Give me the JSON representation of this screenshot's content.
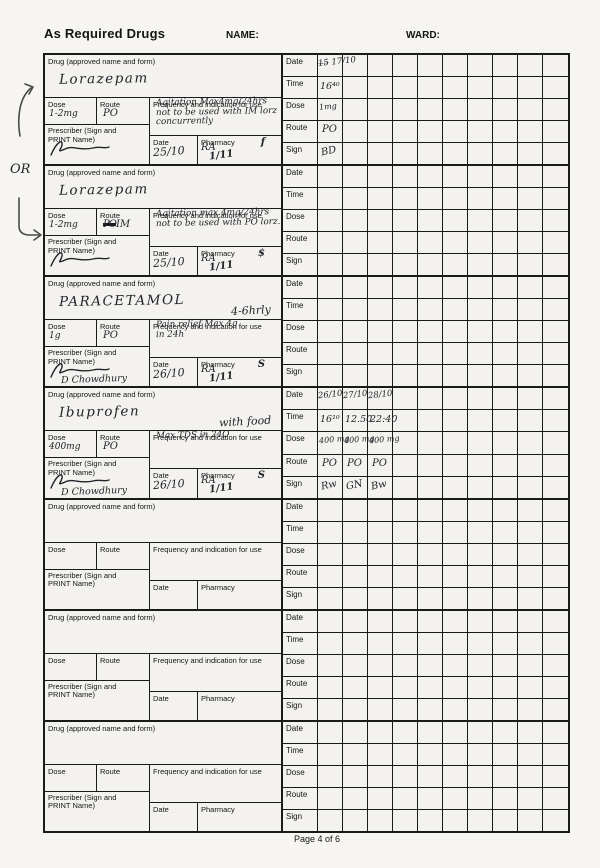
{
  "page": {
    "title": "As Required Drugs",
    "name_label": "NAME:",
    "ward_label": "WARD:",
    "footer": "Page 4 of 6",
    "margin_or": "OR"
  },
  "labels": {
    "drug": "Drug (approved name and form)",
    "dose": "Dose",
    "route": "Route",
    "frequency": "Frequency and indication for use",
    "prescriber": "Prescriber (Sign and PRINT Name)",
    "date": "Date",
    "pharmacy": "Pharmacy",
    "admin_rows": [
      "Date",
      "Time",
      "Dose",
      "Route",
      "Sign"
    ]
  },
  "blocks": [
    {
      "signed": true,
      "drug": "Lorazepam",
      "drug_note": "",
      "dose": "1-2mg",
      "route": "PO",
      "route_struck": "",
      "freq_lines": [
        "Agitation  Max4mg/24hrs",
        "not to be used with IM lorz",
        "concurrently"
      ],
      "print_name": "",
      "rx_date": "25/10",
      "pharmacy_sign": "RA",
      "pharmacy_date": "1/11",
      "pharmacy_mark": "f",
      "admin_cols": [
        {
          "date": "1̶5̶ 17/10",
          "time": "16⁴⁰",
          "dose": "1mg",
          "route": "PO",
          "sign": "BD"
        }
      ]
    },
    {
      "signed": true,
      "drug": "Lorazepam",
      "drug_note": "",
      "dose": "1-2mg",
      "route": "IM",
      "route_struck": "PO",
      "freq_lines": [
        "Agitation max 4mg/24hrs",
        "not to be used with PO lorz."
      ],
      "print_name": "",
      "rx_date": "25/10",
      "pharmacy_sign": "RA",
      "pharmacy_date": "1/11",
      "pharmacy_mark": "$",
      "admin_cols": []
    },
    {
      "signed": true,
      "drug": "PARACETAMOL",
      "drug_note": "4-6hrly",
      "dose": "1g",
      "route": "PO",
      "route_struck": "",
      "freq_lines": [
        "Pain relief   Max 4g",
        "in 24h"
      ],
      "print_name": "D Chowdhury",
      "rx_date": "26/10",
      "pharmacy_sign": "RA",
      "pharmacy_date": "1/11",
      "pharmacy_mark": "S",
      "admin_cols": []
    },
    {
      "signed": true,
      "drug": "Ibuprofen",
      "drug_note": "with food",
      "dose": "400mg",
      "route": "PO",
      "route_struck": "",
      "freq_lines": [
        "Max TDS in 24O"
      ],
      "print_name": "D Chowdhury",
      "rx_date": "26/10",
      "pharmacy_sign": "RA",
      "pharmacy_date": "1/11",
      "pharmacy_mark": "S",
      "admin_cols": [
        {
          "date": "26/10",
          "time": "16¹⁰",
          "dose": "400 mg",
          "route": "PO",
          "sign": "Rw"
        },
        {
          "date": "27/10",
          "time": "12.50",
          "dose": "400 mg",
          "route": "PO",
          "sign": "GN"
        },
        {
          "date": "28/10",
          "time": "22:40",
          "dose": "400 mg",
          "route": "PO",
          "sign": "Bw"
        }
      ]
    },
    {
      "signed": false,
      "admin_cols": []
    },
    {
      "signed": false,
      "admin_cols": []
    },
    {
      "signed": false,
      "admin_cols": []
    }
  ]
}
